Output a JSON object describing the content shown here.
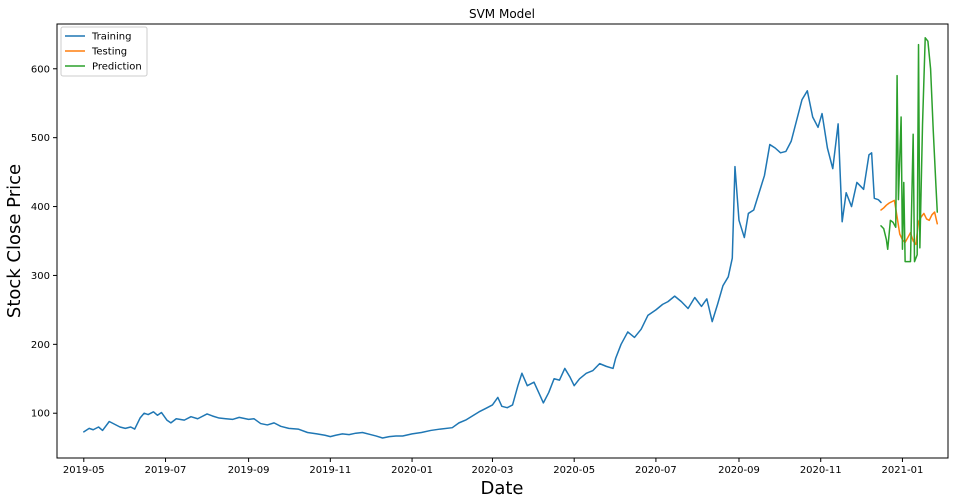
{
  "chart_data": {
    "type": "line",
    "title": "SVM Model",
    "xlabel": "Date",
    "ylabel": "Stock Close Price",
    "ylim": [
      35,
      665
    ],
    "xlim": [
      "2019-04-11",
      "2021-02-04"
    ],
    "grid": false,
    "legend_placement": "top-left",
    "x_ticks": [
      "2019-05",
      "2019-07",
      "2019-09",
      "2019-11",
      "2020-01",
      "2020-03",
      "2020-05",
      "2020-07",
      "2020-09",
      "2020-11",
      "2021-01"
    ],
    "y_ticks": [
      100,
      200,
      300,
      400,
      500,
      600
    ],
    "series": [
      {
        "name": "Training",
        "color": "#1f77b4",
        "points": [
          [
            "2019-05-01",
            73
          ],
          [
            "2019-05-05",
            78
          ],
          [
            "2019-05-08",
            76
          ],
          [
            "2019-05-12",
            80
          ],
          [
            "2019-05-15",
            75
          ],
          [
            "2019-05-20",
            88
          ],
          [
            "2019-05-24",
            84
          ],
          [
            "2019-05-28",
            80
          ],
          [
            "2019-06-01",
            78
          ],
          [
            "2019-06-05",
            80
          ],
          [
            "2019-06-08",
            77
          ],
          [
            "2019-06-12",
            93
          ],
          [
            "2019-06-15",
            100
          ],
          [
            "2019-06-18",
            98
          ],
          [
            "2019-06-22",
            102
          ],
          [
            "2019-06-25",
            97
          ],
          [
            "2019-06-28",
            101
          ],
          [
            "2019-07-02",
            90
          ],
          [
            "2019-07-05",
            86
          ],
          [
            "2019-07-09",
            92
          ],
          [
            "2019-07-15",
            90
          ],
          [
            "2019-07-20",
            95
          ],
          [
            "2019-07-25",
            92
          ],
          [
            "2019-08-01",
            99
          ],
          [
            "2019-08-05",
            96
          ],
          [
            "2019-08-10",
            93
          ],
          [
            "2019-08-15",
            92
          ],
          [
            "2019-08-20",
            91
          ],
          [
            "2019-08-25",
            94
          ],
          [
            "2019-09-01",
            91
          ],
          [
            "2019-09-05",
            92
          ],
          [
            "2019-09-10",
            85
          ],
          [
            "2019-09-15",
            83
          ],
          [
            "2019-09-20",
            86
          ],
          [
            "2019-09-25",
            81
          ],
          [
            "2019-10-01",
            78
          ],
          [
            "2019-10-08",
            77
          ],
          [
            "2019-10-15",
            72
          ],
          [
            "2019-10-22",
            70
          ],
          [
            "2019-10-28",
            68
          ],
          [
            "2019-11-01",
            66
          ],
          [
            "2019-11-05",
            68
          ],
          [
            "2019-11-10",
            70
          ],
          [
            "2019-11-15",
            69
          ],
          [
            "2019-11-20",
            71
          ],
          [
            "2019-11-25",
            72
          ],
          [
            "2019-12-01",
            69
          ],
          [
            "2019-12-05",
            67
          ],
          [
            "2019-12-10",
            64
          ],
          [
            "2019-12-15",
            66
          ],
          [
            "2019-12-20",
            67
          ],
          [
            "2019-12-25",
            67
          ],
          [
            "2020-01-01",
            70
          ],
          [
            "2020-01-08",
            72
          ],
          [
            "2020-01-15",
            75
          ],
          [
            "2020-01-22",
            77
          ],
          [
            "2020-01-31",
            79
          ],
          [
            "2020-02-05",
            86
          ],
          [
            "2020-02-10",
            90
          ],
          [
            "2020-02-15",
            96
          ],
          [
            "2020-02-20",
            102
          ],
          [
            "2020-02-25",
            107
          ],
          [
            "2020-03-01",
            112
          ],
          [
            "2020-03-05",
            123
          ],
          [
            "2020-03-08",
            110
          ],
          [
            "2020-03-12",
            108
          ],
          [
            "2020-03-16",
            112
          ],
          [
            "2020-03-20",
            140
          ],
          [
            "2020-03-23",
            158
          ],
          [
            "2020-03-27",
            140
          ],
          [
            "2020-04-01",
            145
          ],
          [
            "2020-04-05",
            128
          ],
          [
            "2020-04-08",
            115
          ],
          [
            "2020-04-12",
            130
          ],
          [
            "2020-04-16",
            150
          ],
          [
            "2020-04-20",
            148
          ],
          [
            "2020-04-24",
            165
          ],
          [
            "2020-04-28",
            152
          ],
          [
            "2020-05-01",
            140
          ],
          [
            "2020-05-05",
            150
          ],
          [
            "2020-05-10",
            158
          ],
          [
            "2020-05-15",
            162
          ],
          [
            "2020-05-20",
            172
          ],
          [
            "2020-05-25",
            168
          ],
          [
            "2020-05-30",
            165
          ],
          [
            "2020-06-01",
            180
          ],
          [
            "2020-06-05",
            200
          ],
          [
            "2020-06-10",
            218
          ],
          [
            "2020-06-15",
            210
          ],
          [
            "2020-06-20",
            222
          ],
          [
            "2020-06-25",
            242
          ],
          [
            "2020-07-01",
            250
          ],
          [
            "2020-07-06",
            258
          ],
          [
            "2020-07-10",
            262
          ],
          [
            "2020-07-15",
            270
          ],
          [
            "2020-07-20",
            262
          ],
          [
            "2020-07-25",
            252
          ],
          [
            "2020-07-30",
            268
          ],
          [
            "2020-08-04",
            255
          ],
          [
            "2020-08-08",
            266
          ],
          [
            "2020-08-12",
            233
          ],
          [
            "2020-08-16",
            258
          ],
          [
            "2020-08-20",
            285
          ],
          [
            "2020-08-24",
            298
          ],
          [
            "2020-08-27",
            325
          ],
          [
            "2020-08-29",
            458
          ],
          [
            "2020-09-01",
            380
          ],
          [
            "2020-09-05",
            355
          ],
          [
            "2020-09-08",
            390
          ],
          [
            "2020-09-12",
            395
          ],
          [
            "2020-09-16",
            420
          ],
          [
            "2020-09-20",
            445
          ],
          [
            "2020-09-24",
            490
          ],
          [
            "2020-09-28",
            485
          ],
          [
            "2020-10-02",
            478
          ],
          [
            "2020-10-06",
            480
          ],
          [
            "2020-10-10",
            495
          ],
          [
            "2020-10-14",
            525
          ],
          [
            "2020-10-18",
            555
          ],
          [
            "2020-10-22",
            568
          ],
          [
            "2020-10-26",
            530
          ],
          [
            "2020-10-30",
            515
          ],
          [
            "2020-11-02",
            535
          ],
          [
            "2020-11-06",
            485
          ],
          [
            "2020-11-10",
            455
          ],
          [
            "2020-11-14",
            520
          ],
          [
            "2020-11-17",
            378
          ],
          [
            "2020-11-20",
            420
          ],
          [
            "2020-11-24",
            400
          ],
          [
            "2020-11-28",
            435
          ],
          [
            "2020-12-03",
            425
          ],
          [
            "2020-12-07",
            475
          ],
          [
            "2020-12-09",
            478
          ],
          [
            "2020-12-11",
            412
          ],
          [
            "2020-12-14",
            410
          ],
          [
            "2020-12-16",
            406
          ]
        ]
      },
      {
        "name": "Testing",
        "color": "#ff7f0e",
        "points": [
          [
            "2020-12-16",
            395
          ],
          [
            "2020-12-18",
            398
          ],
          [
            "2020-12-20",
            402
          ],
          [
            "2020-12-22",
            405
          ],
          [
            "2020-12-24",
            407
          ],
          [
            "2020-12-26",
            409
          ],
          [
            "2020-12-28",
            385
          ],
          [
            "2020-12-30",
            360
          ],
          [
            "2021-01-01",
            352
          ],
          [
            "2021-01-03",
            348
          ],
          [
            "2021-01-05",
            355
          ],
          [
            "2021-01-07",
            362
          ],
          [
            "2021-01-09",
            350
          ],
          [
            "2021-01-11",
            345
          ],
          [
            "2021-01-13",
            378
          ],
          [
            "2021-01-15",
            385
          ],
          [
            "2021-01-17",
            390
          ],
          [
            "2021-01-19",
            382
          ],
          [
            "2021-01-21",
            380
          ],
          [
            "2021-01-23",
            388
          ],
          [
            "2021-01-25",
            392
          ],
          [
            "2021-01-27",
            375
          ]
        ]
      },
      {
        "name": "Prediction",
        "color": "#2ca02c",
        "points": [
          [
            "2020-12-16",
            372
          ],
          [
            "2020-12-18",
            368
          ],
          [
            "2020-12-20",
            352
          ],
          [
            "2020-12-21",
            338
          ],
          [
            "2020-12-23",
            380
          ],
          [
            "2020-12-25",
            377
          ],
          [
            "2020-12-27",
            370
          ],
          [
            "2020-12-28",
            590
          ],
          [
            "2020-12-29",
            410
          ],
          [
            "2020-12-31",
            530
          ],
          [
            "2021-01-01",
            338
          ],
          [
            "2021-01-02",
            435
          ],
          [
            "2021-01-03",
            320
          ],
          [
            "2021-01-05",
            320
          ],
          [
            "2021-01-07",
            320
          ],
          [
            "2021-01-09",
            505
          ],
          [
            "2021-01-10",
            320
          ],
          [
            "2021-01-12",
            330
          ],
          [
            "2021-01-13",
            635
          ],
          [
            "2021-01-14",
            340
          ],
          [
            "2021-01-16",
            520
          ],
          [
            "2021-01-18",
            645
          ],
          [
            "2021-01-20",
            640
          ],
          [
            "2021-01-22",
            600
          ],
          [
            "2021-01-24",
            510
          ],
          [
            "2021-01-26",
            430
          ],
          [
            "2021-01-27",
            392
          ]
        ]
      }
    ]
  }
}
